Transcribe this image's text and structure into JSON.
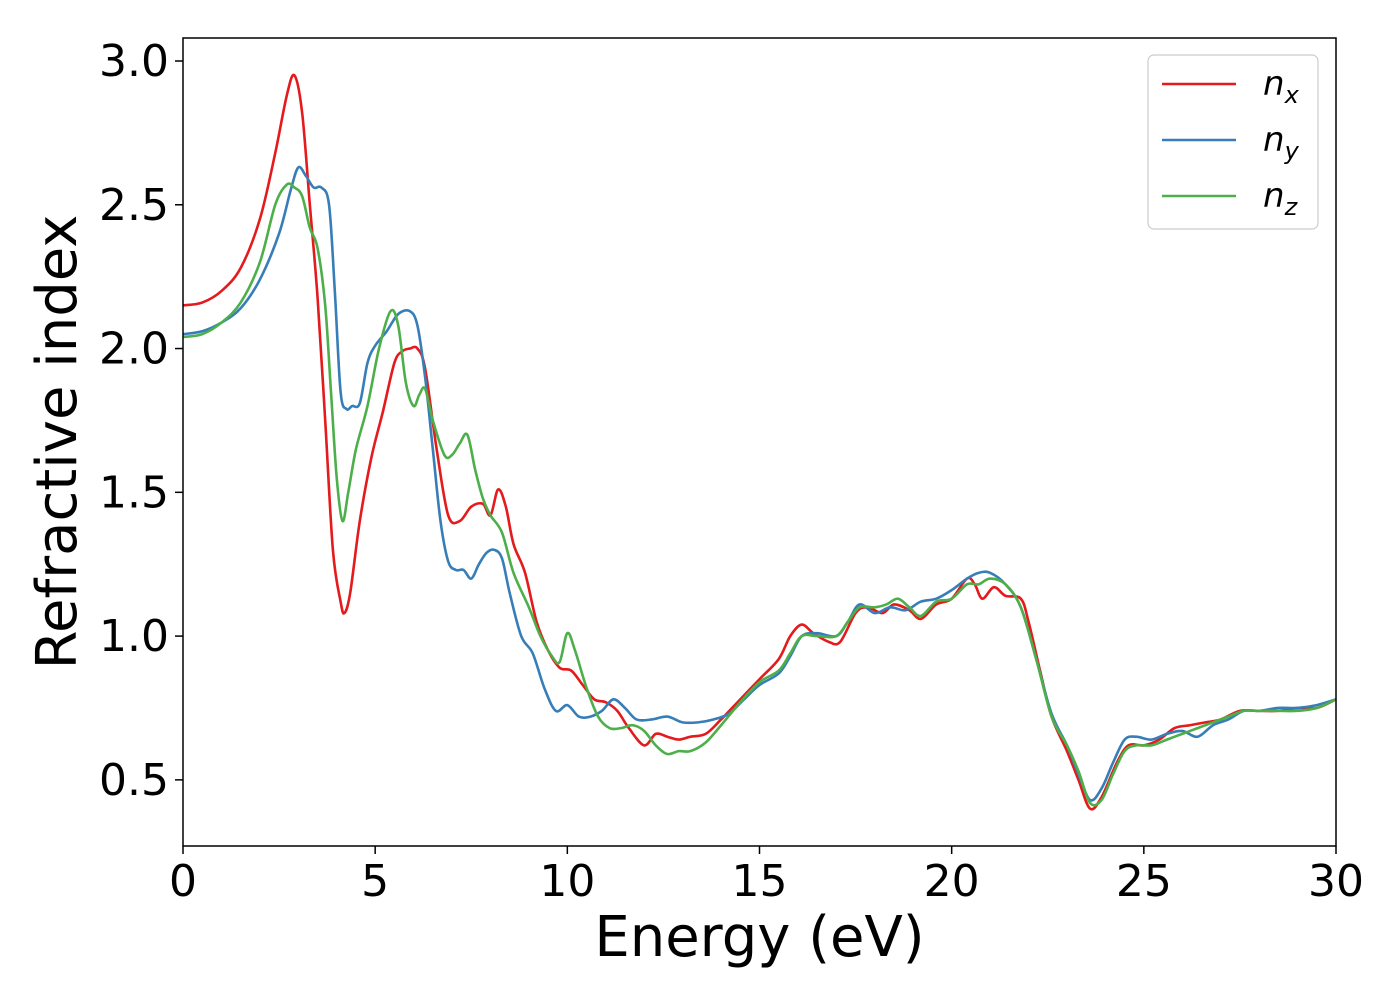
{
  "chart_data": {
    "type": "line",
    "xlabel": "Energy (eV)",
    "ylabel": "Refractive index",
    "xlim": [
      0,
      30
    ],
    "ylim": [
      0.27,
      3.08
    ],
    "xticks": [
      "0",
      "5",
      "10",
      "15",
      "20",
      "25",
      "30"
    ],
    "yticks": [
      "0.5",
      "1.0",
      "1.5",
      "2.0",
      "2.5",
      "3.0"
    ],
    "grid": false,
    "legend_position": "top-right",
    "series": [
      {
        "name": "n",
        "subscript": "x",
        "color": "#e41a1c",
        "x": [
          0,
          0.5,
          1,
          1.5,
          2,
          2.4,
          2.7,
          2.9,
          3.1,
          3.3,
          3.5,
          3.7,
          3.9,
          4.1,
          4.2,
          4.35,
          4.6,
          4.9,
          5.2,
          5.5,
          5.7,
          5.9,
          6.1,
          6.3,
          6.6,
          6.9,
          7.2,
          7.5,
          7.8,
          8.0,
          8.2,
          8.4,
          8.6,
          8.9,
          9.2,
          9.5,
          9.8,
          10.1,
          10.4,
          10.7,
          11.0,
          11.3,
          11.6,
          12.0,
          12.3,
          12.6,
          12.9,
          13.2,
          13.6,
          14.0,
          14.5,
          15.0,
          15.5,
          15.8,
          16.1,
          16.4,
          16.8,
          17.1,
          17.5,
          17.8,
          18.2,
          18.5,
          18.9,
          19.2,
          19.6,
          20.0,
          20.4,
          20.6,
          20.8,
          21.1,
          21.4,
          21.8,
          22.0,
          22.3,
          22.6,
          23.0,
          23.3,
          23.6,
          23.9,
          24.3,
          24.6,
          25.0,
          25.4,
          25.8,
          26.2,
          26.6,
          27.0,
          27.5,
          28.0,
          28.5,
          29.0,
          29.5,
          30.0
        ],
        "y": [
          2.15,
          2.16,
          2.2,
          2.28,
          2.45,
          2.68,
          2.88,
          2.95,
          2.82,
          2.5,
          2.18,
          1.75,
          1.3,
          1.12,
          1.08,
          1.15,
          1.4,
          1.62,
          1.78,
          1.95,
          1.99,
          2.0,
          2.0,
          1.93,
          1.65,
          1.42,
          1.4,
          1.45,
          1.46,
          1.42,
          1.51,
          1.45,
          1.32,
          1.22,
          1.05,
          0.95,
          0.89,
          0.88,
          0.83,
          0.78,
          0.77,
          0.74,
          0.68,
          0.62,
          0.66,
          0.65,
          0.64,
          0.65,
          0.66,
          0.71,
          0.78,
          0.85,
          0.92,
          1.0,
          1.04,
          1.01,
          0.98,
          0.98,
          1.08,
          1.1,
          1.08,
          1.11,
          1.09,
          1.06,
          1.11,
          1.13,
          1.2,
          1.18,
          1.13,
          1.17,
          1.14,
          1.13,
          1.05,
          0.88,
          0.72,
          0.6,
          0.5,
          0.4,
          0.44,
          0.56,
          0.62,
          0.62,
          0.64,
          0.68,
          0.69,
          0.7,
          0.71,
          0.74,
          0.74,
          0.74,
          0.75,
          0.75,
          0.78
        ]
      },
      {
        "name": "n",
        "subscript": "y",
        "color": "#377eb8",
        "x": [
          0,
          0.5,
          1,
          1.5,
          2,
          2.5,
          2.8,
          3.0,
          3.2,
          3.4,
          3.6,
          3.8,
          3.95,
          4.1,
          4.25,
          4.4,
          4.6,
          4.8,
          5.0,
          5.3,
          5.6,
          5.9,
          6.1,
          6.3,
          6.5,
          6.7,
          6.9,
          7.1,
          7.3,
          7.5,
          7.7,
          7.9,
          8.1,
          8.3,
          8.5,
          8.8,
          9.1,
          9.4,
          9.7,
          10.0,
          10.3,
          10.6,
          10.9,
          11.2,
          11.5,
          11.8,
          12.2,
          12.6,
          13.0,
          13.4,
          13.8,
          14.2,
          14.6,
          15.0,
          15.5,
          15.8,
          16.1,
          16.5,
          17.0,
          17.3,
          17.6,
          18.0,
          18.4,
          18.8,
          19.2,
          19.6,
          20.0,
          20.4,
          20.7,
          21.0,
          21.4,
          21.8,
          22.2,
          22.6,
          23.0,
          23.3,
          23.6,
          23.9,
          24.2,
          24.5,
          24.8,
          25.2,
          25.6,
          26.0,
          26.4,
          26.8,
          27.2,
          27.6,
          28.0,
          28.5,
          29.0,
          29.5,
          30.0
        ],
        "y": [
          2.05,
          2.06,
          2.09,
          2.14,
          2.24,
          2.4,
          2.55,
          2.63,
          2.6,
          2.56,
          2.56,
          2.5,
          2.2,
          1.85,
          1.79,
          1.8,
          1.81,
          1.95,
          2.01,
          2.06,
          2.12,
          2.13,
          2.08,
          1.9,
          1.65,
          1.4,
          1.26,
          1.23,
          1.23,
          1.2,
          1.25,
          1.29,
          1.3,
          1.27,
          1.15,
          1.0,
          0.94,
          0.82,
          0.74,
          0.76,
          0.72,
          0.72,
          0.74,
          0.78,
          0.75,
          0.71,
          0.71,
          0.72,
          0.7,
          0.7,
          0.71,
          0.73,
          0.78,
          0.83,
          0.87,
          0.93,
          1.0,
          1.01,
          1.0,
          1.05,
          1.11,
          1.08,
          1.1,
          1.09,
          1.12,
          1.13,
          1.16,
          1.2,
          1.22,
          1.22,
          1.18,
          1.1,
          0.92,
          0.73,
          0.62,
          0.52,
          0.43,
          0.47,
          0.56,
          0.64,
          0.65,
          0.64,
          0.66,
          0.67,
          0.65,
          0.69,
          0.71,
          0.74,
          0.74,
          0.75,
          0.75,
          0.76,
          0.78
        ]
      },
      {
        "name": "n",
        "subscript": "z",
        "color": "#4daf4a",
        "x": [
          0,
          0.5,
          1,
          1.5,
          2,
          2.4,
          2.7,
          2.9,
          3.1,
          3.3,
          3.5,
          3.7,
          3.85,
          4.0,
          4.15,
          4.3,
          4.5,
          4.8,
          5.1,
          5.4,
          5.6,
          5.8,
          6.0,
          6.15,
          6.3,
          6.5,
          6.8,
          7.0,
          7.2,
          7.4,
          7.6,
          7.8,
          8.0,
          8.3,
          8.6,
          9.0,
          9.3,
          9.6,
          9.8,
          10.0,
          10.2,
          10.5,
          10.8,
          11.1,
          11.4,
          11.7,
          12.0,
          12.3,
          12.6,
          12.9,
          13.2,
          13.6,
          14.0,
          14.5,
          15.0,
          15.5,
          15.8,
          16.1,
          16.5,
          17.0,
          17.3,
          17.6,
          18.0,
          18.3,
          18.6,
          18.9,
          19.2,
          19.6,
          20.0,
          20.4,
          20.7,
          21.0,
          21.4,
          21.8,
          22.2,
          22.6,
          23.0,
          23.3,
          23.6,
          23.9,
          24.2,
          24.5,
          24.8,
          25.2,
          25.6,
          26.0,
          26.4,
          26.8,
          27.2,
          27.6,
          28.0,
          28.5,
          29.0,
          29.5,
          30.0
        ],
        "y": [
          2.04,
          2.05,
          2.09,
          2.16,
          2.3,
          2.5,
          2.57,
          2.56,
          2.53,
          2.42,
          2.35,
          2.15,
          1.85,
          1.55,
          1.4,
          1.5,
          1.65,
          1.8,
          2.0,
          2.13,
          2.08,
          1.88,
          1.8,
          1.84,
          1.86,
          1.75,
          1.63,
          1.63,
          1.67,
          1.7,
          1.58,
          1.48,
          1.42,
          1.36,
          1.22,
          1.1,
          1.0,
          0.93,
          0.91,
          1.01,
          0.95,
          0.82,
          0.72,
          0.68,
          0.68,
          0.69,
          0.67,
          0.62,
          0.59,
          0.6,
          0.6,
          0.63,
          0.69,
          0.77,
          0.84,
          0.88,
          0.94,
          1.0,
          1.0,
          1.0,
          1.05,
          1.1,
          1.1,
          1.11,
          1.13,
          1.1,
          1.07,
          1.12,
          1.13,
          1.18,
          1.18,
          1.2,
          1.18,
          1.1,
          0.92,
          0.72,
          0.62,
          0.53,
          0.42,
          0.43,
          0.52,
          0.6,
          0.62,
          0.62,
          0.64,
          0.66,
          0.68,
          0.7,
          0.72,
          0.74,
          0.74,
          0.74,
          0.74,
          0.75,
          0.78
        ]
      }
    ]
  }
}
